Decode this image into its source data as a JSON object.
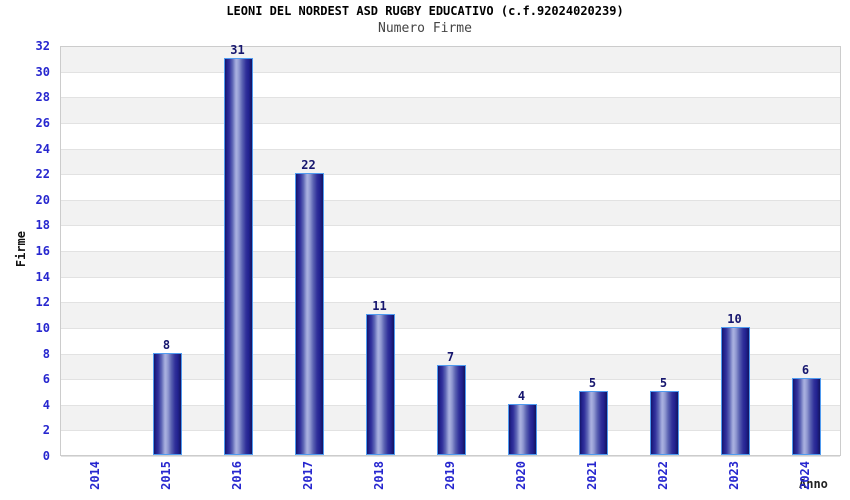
{
  "chart_data": {
    "type": "bar",
    "title": "LEONI DEL NORDEST ASD RUGBY EDUCATIVO (c.f.92024020239)",
    "subtitle": "Numero Firme",
    "xlabel": "Anno",
    "ylabel": "Firme",
    "categories": [
      "2014",
      "2015",
      "2016",
      "2017",
      "2018",
      "2019",
      "2020",
      "2021",
      "2022",
      "2023",
      "2024"
    ],
    "values": [
      0,
      8,
      31,
      22,
      11,
      7,
      4,
      5,
      5,
      10,
      6
    ],
    "ylim": [
      0,
      32
    ],
    "ytick_step": 2,
    "yticks": [
      0,
      2,
      4,
      6,
      8,
      10,
      12,
      14,
      16,
      18,
      20,
      22,
      24,
      26,
      28,
      30,
      32
    ],
    "grid": "alternating horizontal gray/white bands every 2 units with light gridlines",
    "legend": "none",
    "bar_value_labels": true,
    "colors": {
      "axis_tick_label": "#2727cf",
      "bar_value_label": "#16166e",
      "bar_border": "#4f9bf0",
      "bar_gradient_dark": "#1b1b86",
      "bar_gradient_highlight": "#aab1e0",
      "band_gray": "#f2f2f2",
      "gridline": "#e2e2e2",
      "plot_border": "#cccccc",
      "title_color": "#000000",
      "subtitle_color": "#444444",
      "background": "#ffffff"
    }
  }
}
